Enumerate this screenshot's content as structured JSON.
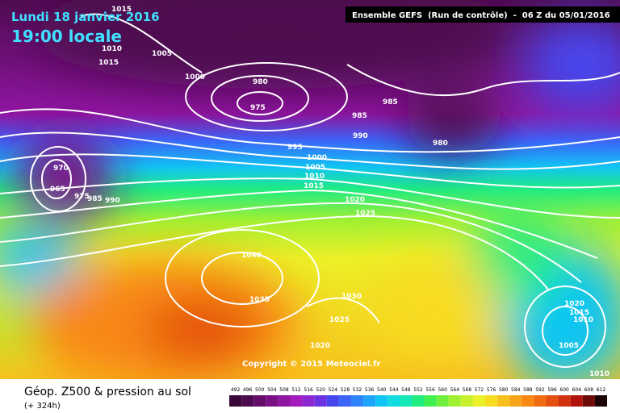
{
  "header": {
    "date": "Lundi 18 janvier 2016",
    "time": "19:00 locale",
    "run": "Ensemble GEFS  (Run de contrôle)  -  06 Z du 05/01/2016"
  },
  "isobar_labels": [
    "1015",
    "1010",
    "1015",
    "1005",
    "1000",
    "980",
    "975",
    "985",
    "985",
    "990",
    "980",
    "995",
    "1000",
    "1005",
    "1010",
    "1015",
    "1020",
    "1025",
    "970",
    "965",
    "975",
    "985",
    "990",
    "1040",
    "1035",
    "1030",
    "1025",
    "1020",
    "1020",
    "1015",
    "1010",
    "1005",
    "1010"
  ],
  "copyright": "Copyright © 2015 Meteociel.fr",
  "footer": {
    "title": "Géop. Z500 & pression au sol",
    "lead": "(+ 324h)"
  },
  "scale": {
    "labels": [
      "492",
      "496",
      "500",
      "504",
      "508",
      "512",
      "516",
      "520",
      "524",
      "528",
      "532",
      "536",
      "540",
      "544",
      "548",
      "552",
      "556",
      "560",
      "564",
      "568",
      "572",
      "576",
      "580",
      "584",
      "588",
      "592",
      "596",
      "600",
      "604",
      "608",
      "612"
    ],
    "colors": [
      "#3a0838",
      "#4e0c50",
      "#640e6a",
      "#7a1286",
      "#9016a2",
      "#a41cbe",
      "#8c28d2",
      "#6a32e0",
      "#4646ee",
      "#3c64f8",
      "#2e84fa",
      "#1ea4fa",
      "#10c4f4",
      "#10dce0",
      "#14e8b4",
      "#20ec80",
      "#40f050",
      "#70f03c",
      "#a0f032",
      "#c8f02c",
      "#ecf028",
      "#f8dc20",
      "#f8c01c",
      "#f8a418",
      "#f88814",
      "#f06c12",
      "#e45010",
      "#d0300e",
      "#b0140c",
      "#6e0a08",
      "#1a0404"
    ]
  }
}
